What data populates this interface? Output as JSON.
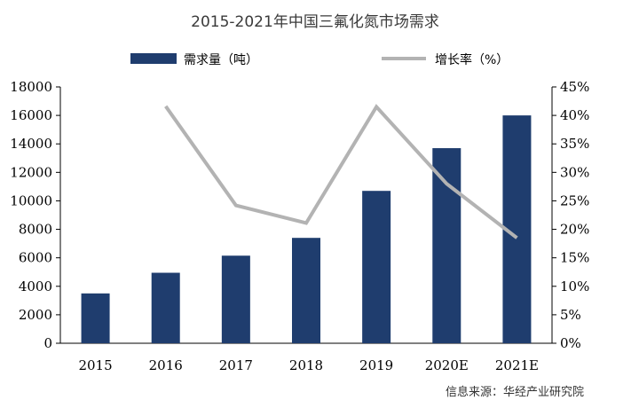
{
  "chart_data": {
    "type": "bar",
    "title": "2015-2021年中国三氟化氮市场需求",
    "categories": [
      "2015",
      "2016",
      "2017",
      "2018",
      "2019",
      "2020E",
      "2021E"
    ],
    "series": [
      {
        "name": "需求量（吨）",
        "kind": "bar",
        "axis": "left",
        "color": "#1f3d6e",
        "values": [
          3500,
          4950,
          6150,
          7400,
          10700,
          13700,
          16000
        ]
      },
      {
        "name": "增长率（%）",
        "kind": "line",
        "axis": "right",
        "color": "#b3b3b3",
        "values": [
          null,
          41.6,
          24.2,
          21.1,
          41.5,
          28.0,
          18.5
        ]
      }
    ],
    "y_left": {
      "ylim": [
        0,
        18000
      ],
      "ticks": [
        "0",
        "2000",
        "4000",
        "6000",
        "8000",
        "10000",
        "12000",
        "14000",
        "16000",
        "18000"
      ]
    },
    "y_right": {
      "ylim": [
        0,
        45
      ],
      "ticks": [
        "0%",
        "5%",
        "10%",
        "15%",
        "20%",
        "25%",
        "30%",
        "35%",
        "40%",
        "45%"
      ]
    },
    "legend_placement": "top",
    "grid": false
  },
  "source": "信息来源：华经产业研究院"
}
